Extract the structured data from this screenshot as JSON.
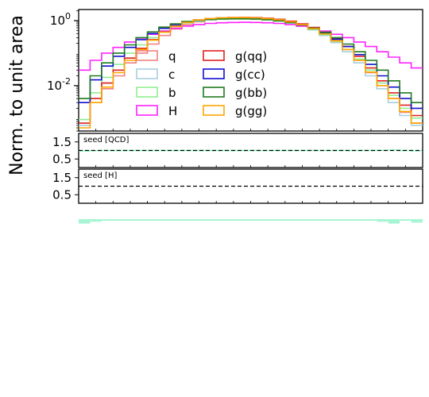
{
  "chart_data": [
    {
      "type": "line",
      "step": true,
      "ylabel": "Norm. to unit area",
      "yscale": "log",
      "ylim": [
        0.0004,
        2.2
      ],
      "xlim": [
        0,
        30
      ],
      "yticks": [
        {
          "value": 1,
          "label": "10^0"
        },
        {
          "value": 0.01,
          "label": "10^-2"
        }
      ],
      "bins": 30,
      "legend": {
        "placement": "lower-center",
        "columns": 2
      },
      "series": [
        {
          "name": "q",
          "color": "#f08080",
          "values": [
            0.0006,
            0.003,
            0.008,
            0.02,
            0.05,
            0.1,
            0.19,
            0.35,
            0.55,
            0.75,
            0.92,
            1.05,
            1.12,
            1.15,
            1.16,
            1.15,
            1.1,
            1.02,
            0.9,
            0.75,
            0.58,
            0.4,
            0.25,
            0.13,
            0.06,
            0.025,
            0.01,
            0.004,
            0.0015,
            0.0007
          ]
        },
        {
          "name": "c",
          "color": "#a8cfe0",
          "values": [
            0.0006,
            0.004,
            0.012,
            0.03,
            0.07,
            0.14,
            0.26,
            0.45,
            0.65,
            0.85,
            0.98,
            1.08,
            1.12,
            1.14,
            1.14,
            1.12,
            1.07,
            0.98,
            0.85,
            0.7,
            0.52,
            0.35,
            0.21,
            0.11,
            0.05,
            0.02,
            0.008,
            0.003,
            0.0012,
            0.0006
          ]
        },
        {
          "name": "b",
          "color": "#90ee90",
          "values": [
            0.0009,
            0.006,
            0.018,
            0.045,
            0.1,
            0.18,
            0.3,
            0.48,
            0.68,
            0.86,
            0.98,
            1.06,
            1.1,
            1.12,
            1.12,
            1.1,
            1.05,
            0.96,
            0.84,
            0.7,
            0.53,
            0.37,
            0.23,
            0.13,
            0.065,
            0.03,
            0.012,
            0.005,
            0.002,
            0.001
          ]
        },
        {
          "name": "H",
          "color": "#ff22ff",
          "values": [
            0.03,
            0.06,
            0.1,
            0.15,
            0.22,
            0.29,
            0.38,
            0.48,
            0.58,
            0.68,
            0.76,
            0.82,
            0.86,
            0.88,
            0.89,
            0.88,
            0.86,
            0.82,
            0.76,
            0.68,
            0.58,
            0.48,
            0.38,
            0.3,
            0.22,
            0.16,
            0.11,
            0.075,
            0.05,
            0.035
          ]
        },
        {
          "name": "g(qq)",
          "color": "#e02020",
          "values": [
            0.0007,
            0.004,
            0.012,
            0.03,
            0.07,
            0.14,
            0.26,
            0.45,
            0.68,
            0.9,
            1.06,
            1.16,
            1.22,
            1.25,
            1.26,
            1.24,
            1.19,
            1.1,
            0.96,
            0.8,
            0.62,
            0.44,
            0.28,
            0.16,
            0.08,
            0.035,
            0.014,
            0.006,
            0.0025,
            0.0012
          ]
        },
        {
          "name": "g(cc)",
          "color": "#1010d0",
          "values": [
            0.003,
            0.015,
            0.04,
            0.08,
            0.15,
            0.26,
            0.4,
            0.58,
            0.76,
            0.92,
            1.03,
            1.1,
            1.14,
            1.16,
            1.16,
            1.14,
            1.09,
            1.0,
            0.88,
            0.73,
            0.57,
            0.41,
            0.27,
            0.16,
            0.09,
            0.045,
            0.02,
            0.009,
            0.004,
            0.002
          ]
        },
        {
          "name": "g(bb)",
          "color": "#207a20",
          "values": [
            0.004,
            0.02,
            0.05,
            0.1,
            0.18,
            0.3,
            0.45,
            0.63,
            0.8,
            0.94,
            1.04,
            1.1,
            1.13,
            1.14,
            1.14,
            1.12,
            1.07,
            0.99,
            0.88,
            0.74,
            0.59,
            0.44,
            0.3,
            0.19,
            0.11,
            0.06,
            0.03,
            0.014,
            0.006,
            0.003
          ]
        },
        {
          "name": "g(gg)",
          "color": "#ffa500",
          "values": [
            0.0005,
            0.003,
            0.009,
            0.025,
            0.06,
            0.13,
            0.25,
            0.44,
            0.66,
            0.88,
            1.05,
            1.16,
            1.22,
            1.24,
            1.24,
            1.22,
            1.16,
            1.06,
            0.92,
            0.75,
            0.57,
            0.39,
            0.24,
            0.13,
            0.06,
            0.026,
            0.01,
            0.004,
            0.0016,
            0.0007
          ]
        }
      ]
    },
    {
      "type": "line",
      "panel_label": "seed [QCD]",
      "yticks": [
        1.5,
        0.5
      ],
      "ylim": [
        0.0,
        2.0
      ],
      "reference_line": 1.0,
      "series": [
        {
          "color": "#80ffc0",
          "values": [
            0.97,
            0.99,
            1.0,
            1.0,
            1.0,
            1.0,
            1.0,
            1.0,
            1.0,
            1.0,
            1.0,
            1.0,
            1.0,
            1.0,
            1.0,
            1.0,
            1.0,
            1.0,
            1.0,
            1.0,
            1.0,
            1.0,
            1.0,
            1.0,
            1.0,
            1.0,
            1.01,
            1.03,
            1.0,
            0.98
          ]
        }
      ]
    },
    {
      "type": "line",
      "panel_label": "seed [H]",
      "yticks": [
        1.5,
        0.5
      ],
      "ylim": [
        0.0,
        2.0
      ],
      "reference_line": 1.0,
      "series": []
    }
  ]
}
